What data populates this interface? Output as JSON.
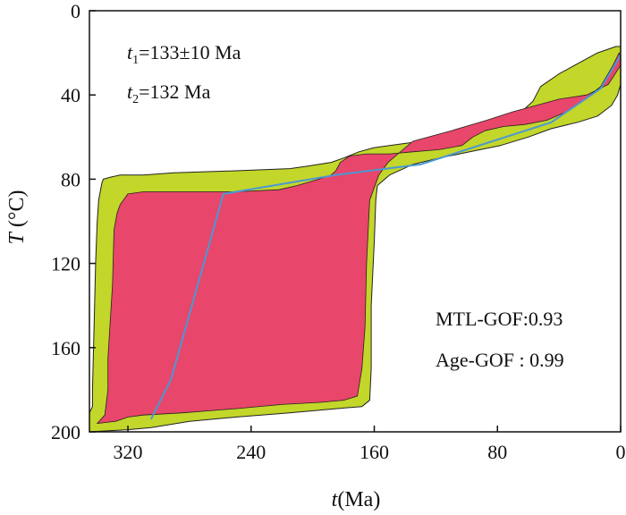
{
  "chart_data": {
    "type": "area",
    "xlabel": {
      "italic": "t",
      "rest": "(Ma)"
    },
    "ylabel": {
      "italic": "T",
      "rest": " (°C)"
    },
    "xlim": [
      345,
      0
    ],
    "ylim": [
      200,
      0
    ],
    "xticks": [
      320,
      240,
      160,
      80,
      0
    ],
    "yticks": [
      0,
      40,
      80,
      120,
      160,
      200
    ],
    "grid": false,
    "annotations": {
      "t1": {
        "sym": "t",
        "sub": "1",
        "text": "=133±10 Ma"
      },
      "t2": {
        "sym": "t",
        "sub": "2",
        "text": "=132 Ma"
      },
      "mtl_gof": "MTL-GOF:0.93",
      "age_gof": "Age-GOF : 0.99"
    },
    "colors": {
      "acceptable": "#c3d62a",
      "good": "#e8466a",
      "best": "#4a98d4",
      "outline": "#222222"
    },
    "series": [
      {
        "role": "acceptable-envelope",
        "points": [
          [
            345,
            191
          ],
          [
            343,
            188
          ],
          [
            343,
            180
          ],
          [
            342,
            150
          ],
          [
            341,
            120
          ],
          [
            340,
            101
          ],
          [
            339,
            90
          ],
          [
            337,
            82
          ],
          [
            336,
            80
          ],
          [
            331,
            79
          ],
          [
            325,
            78
          ],
          [
            310,
            78
          ],
          [
            290,
            77
          ],
          [
            250,
            76
          ],
          [
            215,
            75
          ],
          [
            205,
            74
          ],
          [
            188,
            72
          ],
          [
            180,
            70
          ],
          [
            170,
            67
          ],
          [
            160,
            65
          ],
          [
            140,
            63
          ],
          [
            120,
            61
          ],
          [
            100,
            58
          ],
          [
            85,
            54
          ],
          [
            72,
            50
          ],
          [
            63,
            47
          ],
          [
            57,
            43
          ],
          [
            52,
            36
          ],
          [
            40,
            30
          ],
          [
            30,
            26
          ],
          [
            15,
            20
          ],
          [
            3,
            17
          ],
          [
            0,
            17
          ],
          [
            0,
            35
          ],
          [
            2,
            40
          ],
          [
            6,
            45
          ],
          [
            15,
            50
          ],
          [
            28,
            53
          ],
          [
            45,
            56
          ],
          [
            60,
            60
          ],
          [
            78,
            64
          ],
          [
            98,
            67
          ],
          [
            118,
            70
          ],
          [
            135,
            73
          ],
          [
            150,
            78
          ],
          [
            158,
            83
          ],
          [
            159,
            90
          ],
          [
            160,
            110
          ],
          [
            162,
            140
          ],
          [
            162,
            170
          ],
          [
            163,
            185
          ],
          [
            168,
            188
          ],
          [
            185,
            189
          ],
          [
            215,
            191
          ],
          [
            250,
            193
          ],
          [
            280,
            195
          ],
          [
            305,
            198
          ],
          [
            320,
            199
          ],
          [
            345,
            200
          ]
        ]
      },
      {
        "role": "good-envelope",
        "points": [
          [
            340,
            196
          ],
          [
            335,
            192
          ],
          [
            333,
            180
          ],
          [
            333,
            165
          ],
          [
            330,
            130
          ],
          [
            329,
            104
          ],
          [
            327,
            96
          ],
          [
            325,
            92
          ],
          [
            320,
            87
          ],
          [
            310,
            86
          ],
          [
            290,
            86
          ],
          [
            250,
            86
          ],
          [
            222,
            85
          ],
          [
            210,
            83
          ],
          [
            196,
            80
          ],
          [
            188,
            78
          ],
          [
            185,
            76
          ],
          [
            182,
            72
          ],
          [
            176,
            69
          ],
          [
            165,
            68
          ],
          [
            150,
            68
          ],
          [
            135,
            67
          ],
          [
            118,
            66
          ],
          [
            103,
            64
          ],
          [
            96,
            60
          ],
          [
            88,
            57
          ],
          [
            76,
            55
          ],
          [
            62,
            54
          ],
          [
            48,
            52
          ],
          [
            35,
            48
          ],
          [
            25,
            43
          ],
          [
            13,
            36
          ],
          [
            5,
            26
          ],
          [
            1,
            20
          ],
          [
            0,
            22
          ],
          [
            0,
            26
          ],
          [
            8,
            35
          ],
          [
            22,
            40
          ],
          [
            40,
            42
          ],
          [
            55,
            45
          ],
          [
            70,
            48
          ],
          [
            87,
            52
          ],
          [
            110,
            57
          ],
          [
            135,
            62
          ],
          [
            151,
            72
          ],
          [
            157,
            78
          ],
          [
            160,
            84
          ],
          [
            163,
            90
          ],
          [
            165,
            120
          ],
          [
            166,
            150
          ],
          [
            168,
            170
          ],
          [
            171,
            183
          ],
          [
            180,
            185
          ],
          [
            195,
            186
          ],
          [
            220,
            187
          ],
          [
            250,
            189
          ],
          [
            285,
            191
          ],
          [
            310,
            192
          ],
          [
            320,
            193
          ],
          [
            328,
            195
          ],
          [
            340,
            196
          ]
        ]
      },
      {
        "role": "best-path",
        "points": [
          [
            305,
            194
          ],
          [
            292,
            175
          ],
          [
            258,
            87
          ],
          [
            185,
            78
          ],
          [
            130,
            73
          ],
          [
            45,
            53
          ],
          [
            13,
            37
          ],
          [
            0,
            21
          ]
        ]
      }
    ]
  }
}
